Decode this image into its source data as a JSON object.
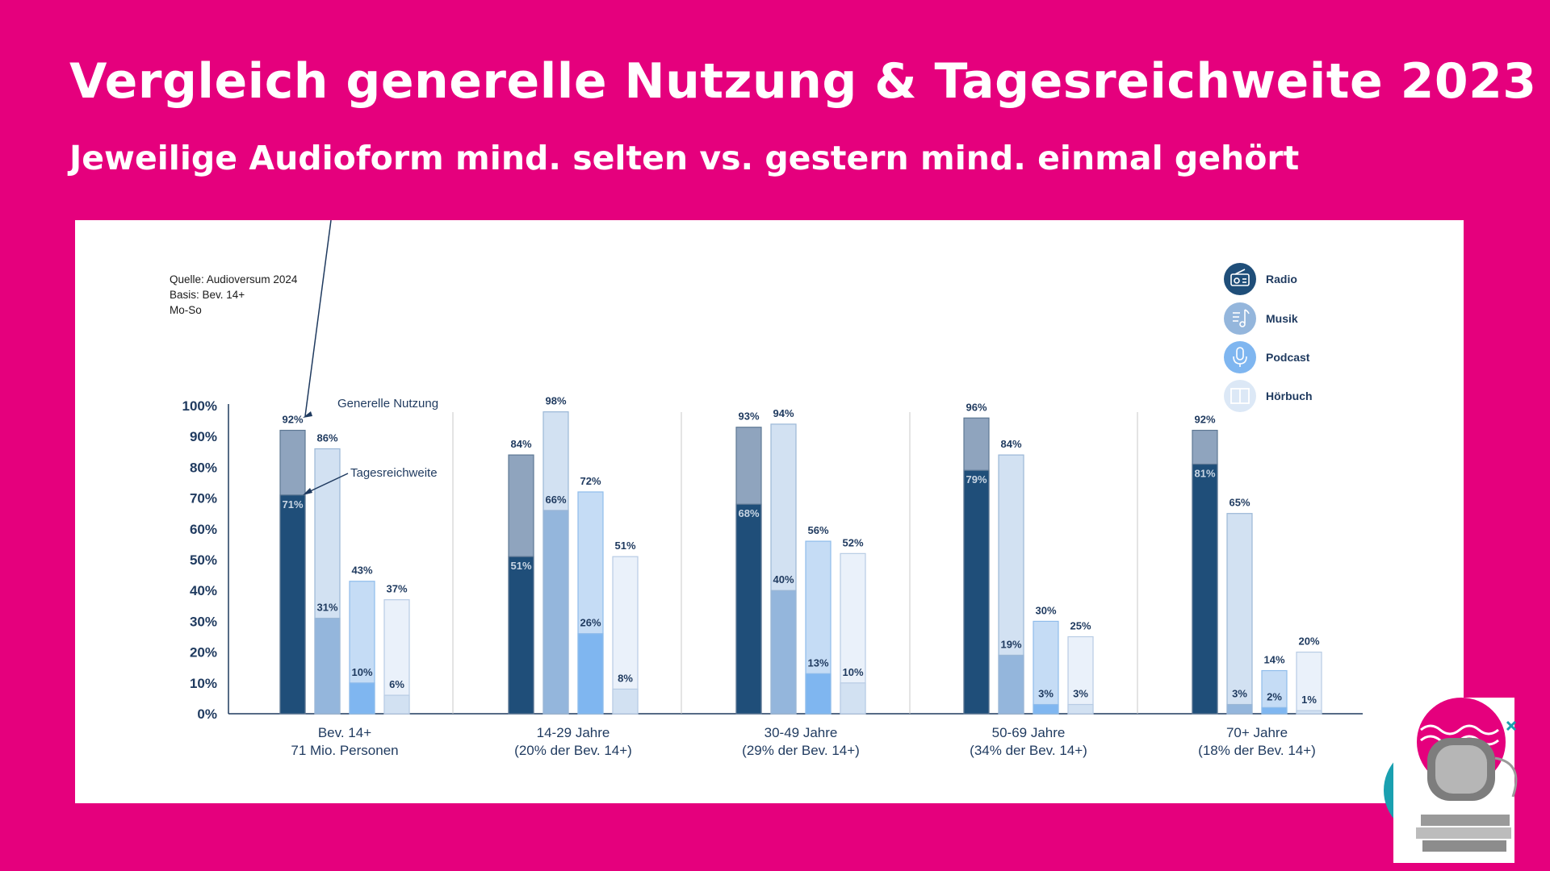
{
  "header": {
    "title": "Vergleich generelle Nutzung & Tagesreichweite 2023",
    "subtitle": "Jeweilige Audioform mind. selten vs. gestern mind. einmal gehört"
  },
  "source": {
    "line1": "Quelle: Audioversum 2024",
    "line2": "Basis: Bev. 14+",
    "line3": "Mo-So"
  },
  "annotations": {
    "general": "Generelle Nutzung",
    "daily": "Tagesreichweite"
  },
  "colors": {
    "background": "#E5007D",
    "radio_general": "#8FA4BE",
    "radio_daily": "#1F4E79",
    "musik_general": "#D2E1F2",
    "musik_daily": "#94B6DC",
    "podcast_general": "#C5DCF5",
    "podcast_daily": "#7FB6F0",
    "hoerbuch_general": "#EAF1FA",
    "hoerbuch_daily": "#D2E1F2"
  },
  "chart_data": {
    "type": "bar",
    "ylim": [
      0,
      100
    ],
    "yticks": [
      "0%",
      "10%",
      "20%",
      "30%",
      "40%",
      "50%",
      "60%",
      "70%",
      "80%",
      "90%",
      "100%"
    ],
    "legend_position": "top-right",
    "categories": [
      {
        "line1": "Bev. 14+",
        "line2": "71 Mio. Personen"
      },
      {
        "line1": "14-29 Jahre",
        "line2": "(20% der Bev. 14+)"
      },
      {
        "line1": "30-49 Jahre",
        "line2": "(29% der Bev. 14+)"
      },
      {
        "line1": "50-69 Jahre",
        "line2": "(34% der Bev. 14+)"
      },
      {
        "line1": "70+ Jahre",
        "line2": "(18% der Bev. 14+)"
      }
    ],
    "series": [
      {
        "name": "Radio",
        "icon": "radio-icon",
        "general": [
          92,
          84,
          93,
          96,
          92
        ],
        "daily": [
          71,
          51,
          68,
          79,
          81
        ]
      },
      {
        "name": "Musik",
        "icon": "music-note-icon",
        "general": [
          86,
          98,
          94,
          84,
          65
        ],
        "daily": [
          31,
          66,
          40,
          19,
          3
        ]
      },
      {
        "name": "Podcast",
        "icon": "microphone-icon",
        "general": [
          43,
          72,
          56,
          30,
          14
        ],
        "daily": [
          10,
          26,
          13,
          3,
          2
        ]
      },
      {
        "name": "Hörbuch",
        "icon": "book-icon",
        "general": [
          37,
          51,
          52,
          25,
          20
        ],
        "daily": [
          6,
          8,
          10,
          3,
          1
        ]
      }
    ]
  }
}
